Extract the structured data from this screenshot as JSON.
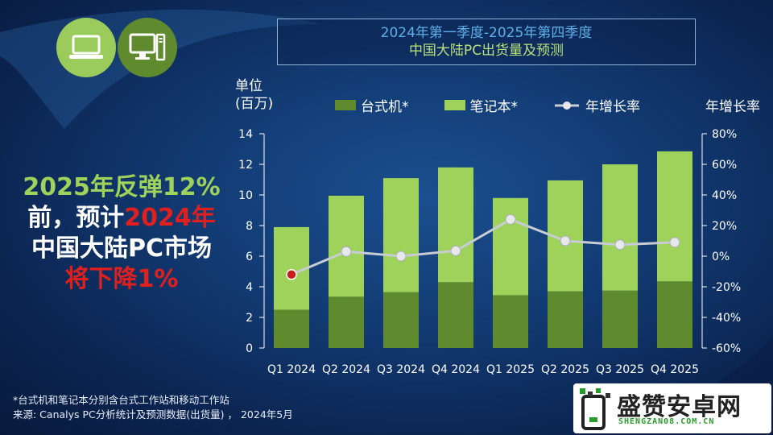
{
  "title": {
    "line1": "2024年第一季度-2025年第四季度",
    "line2": "中国大陆PC出货量及预测"
  },
  "callout": {
    "line1": "2025年反弹12%",
    "line2_a": "前，预计",
    "line2_b": "2024年",
    "line3": "中国大陆PC市场",
    "line4": "将下降1%"
  },
  "icons": [
    "laptop-icon",
    "desktop-icon"
  ],
  "colors": {
    "desktop": "#5f8a2e",
    "notebook": "#9fd25a",
    "growth_line": "#c8ccd4",
    "growth_marker_negative": "#c81e1e"
  },
  "chart_data": {
    "type": "bar",
    "stacked": true,
    "categories": [
      "Q1 2024",
      "Q2 2024",
      "Q3 2024",
      "Q4 2024",
      "Q1 2025",
      "Q2 2025",
      "Q3 2025",
      "Q4 2025"
    ],
    "ylabel_line1": "单位",
    "ylabel_line2": "(百万)",
    "y2label": "年增长率",
    "ylim": [
      0,
      14
    ],
    "yticks": [
      0,
      2,
      4,
      6,
      8,
      10,
      12,
      14
    ],
    "y2lim": [
      -60,
      80
    ],
    "y2ticks": [
      "80%",
      "60%",
      "40%",
      "20%",
      "0%",
      "-20%",
      "-40%",
      "-60%"
    ],
    "y2tick_values": [
      80,
      60,
      40,
      20,
      0,
      -20,
      -40,
      -60
    ],
    "series": [
      {
        "name": "台式机*",
        "values": [
          2.5,
          3.35,
          3.65,
          4.3,
          3.45,
          3.7,
          3.75,
          4.35
        ]
      },
      {
        "name": "笔记本*",
        "values": [
          5.4,
          6.6,
          7.45,
          7.5,
          6.35,
          7.25,
          8.25,
          8.5
        ]
      }
    ],
    "line_series": {
      "name": "年增长率",
      "values": [
        -12,
        3,
        0,
        3.5,
        24,
        10,
        7.5,
        9
      ]
    },
    "legend_position": "top",
    "grid": false
  },
  "footnote": {
    "line1": "*台式机和笔记本分别含台式工作站和移动工作站",
    "line2": "来源: Canalys PC分析统计及预测数据(出货量) ， 2024年5月"
  },
  "watermark": {
    "text": "盛赞安卓网",
    "sub": "SHENGZAN08.COM.CN"
  }
}
